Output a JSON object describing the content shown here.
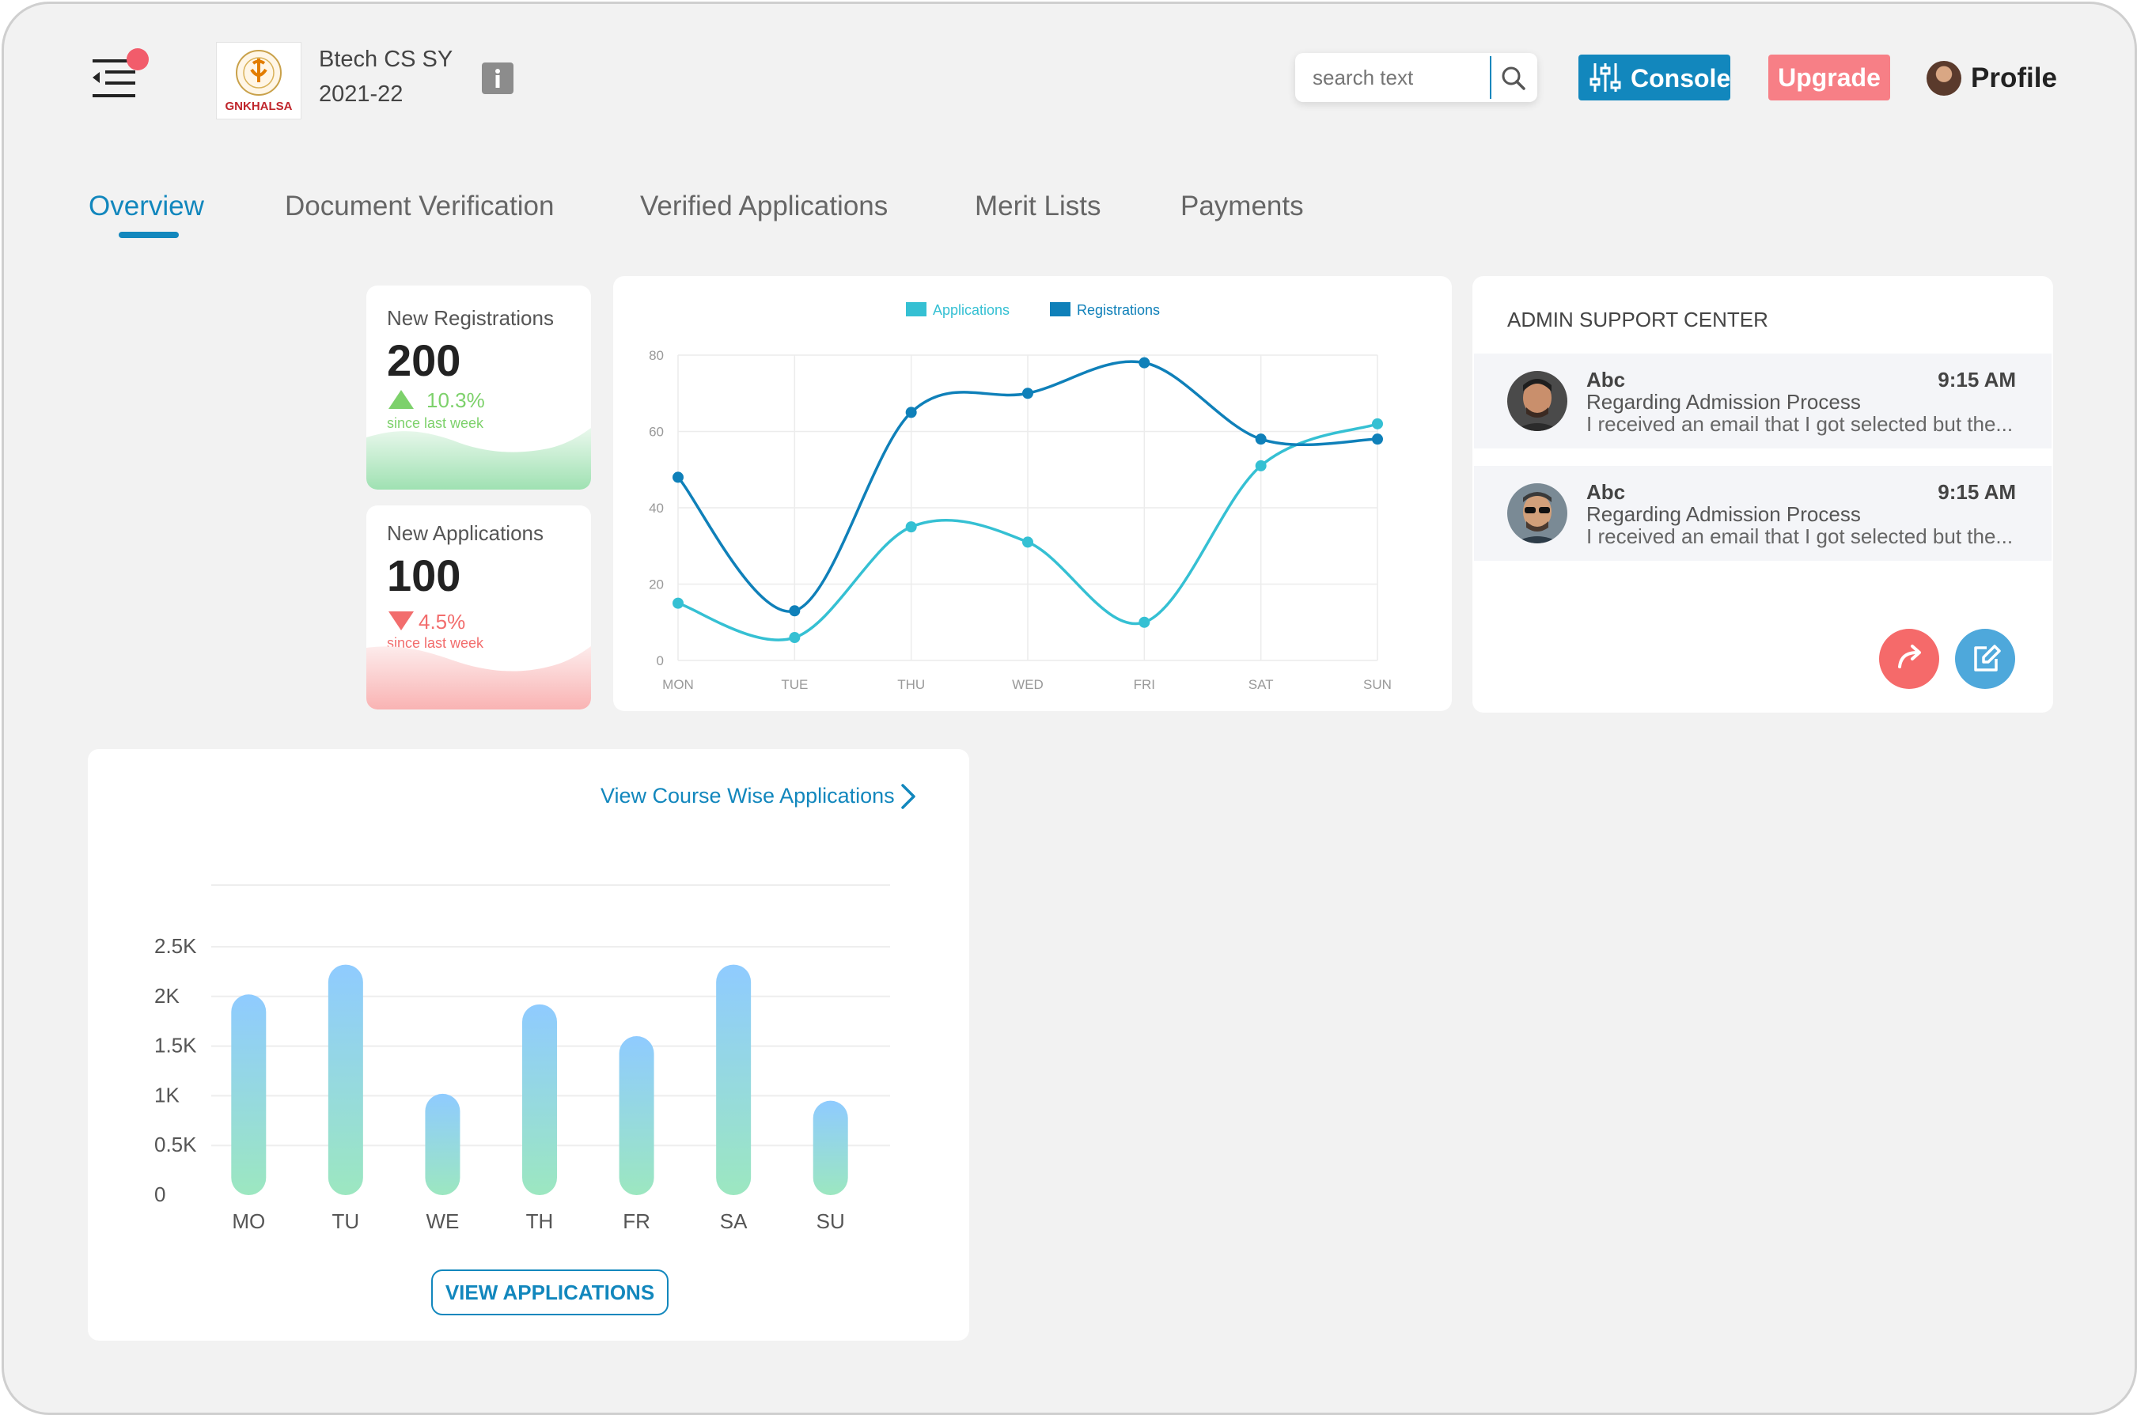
{
  "header": {
    "menu_icon": "menu-collapse-icon",
    "logo_text": "GNKHALSA",
    "course_line1": "Btech CS SY",
    "course_line2": "2021-22",
    "info_icon": "info-icon",
    "search": {
      "placeholder": "search text",
      "icon": "search-icon"
    },
    "console_label": "Console",
    "console_icon": "sliders-icon",
    "upgrade_label": "Upgrade",
    "profile_label": "Profile"
  },
  "tabs": [
    {
      "label": "Overview",
      "active": true
    },
    {
      "label": "Document Verification"
    },
    {
      "label": "Verified Applications"
    },
    {
      "label": "Merit Lists"
    },
    {
      "label": "Payments"
    }
  ],
  "stats": {
    "registrations": {
      "label": "New Registrations",
      "value": "200",
      "change": "10.3%",
      "direction": "up",
      "since": "since last week"
    },
    "applications": {
      "label": "New Applications",
      "value": "100",
      "change": "4.5%",
      "direction": "down",
      "since": "since last week"
    }
  },
  "support": {
    "title": "ADMIN SUPPORT CENTER",
    "messages": [
      {
        "name": "Abc",
        "time": "9:15 AM",
        "subject": "Regarding Admission Process",
        "preview": "I received an email that I got selected but the..."
      },
      {
        "name": "Abc",
        "time": "9:15 AM",
        "subject": "Regarding Admission Process",
        "preview": "I received an email that I got selected but the..."
      }
    ],
    "reply_icon": "reply-arrow-icon",
    "compose_icon": "edit-icon"
  },
  "course_chart": {
    "link_label": "View Course Wise Applications",
    "link_icon": "chevron-right-icon",
    "button_label": "VIEW APPLICATIONS"
  },
  "colors": {
    "accent": "#1287bd",
    "applications": "#35c0d3",
    "registrations": "#0f80b9",
    "upgrade": "#f77f86",
    "up": "#7dd16b",
    "down": "#f26d6d"
  },
  "chart_data": [
    {
      "type": "line",
      "categories": [
        "MON",
        "TUE",
        "THU",
        "WED",
        "FRI",
        "SAT",
        "SUN"
      ],
      "series": [
        {
          "name": "Applications",
          "values": [
            15,
            6,
            35,
            31,
            10,
            51,
            62
          ]
        },
        {
          "name": "Registrations",
          "values": [
            48,
            13,
            65,
            70,
            78,
            58,
            58
          ]
        }
      ],
      "ylim": [
        0,
        80
      ],
      "yticks": [
        0,
        20,
        40,
        60,
        80
      ],
      "legend": "top",
      "grid": true
    },
    {
      "type": "bar",
      "categories": [
        "MO",
        "TU",
        "WE",
        "TH",
        "FR",
        "SA",
        "SU"
      ],
      "values": [
        2.02,
        2.32,
        1.02,
        1.92,
        1.6,
        2.32,
        0.95
      ],
      "ylim": [
        0,
        2.5
      ],
      "yticks": [
        "0",
        "0.5K",
        "1K",
        "1.5K",
        "2K",
        "2.5K"
      ],
      "grid": true
    }
  ]
}
